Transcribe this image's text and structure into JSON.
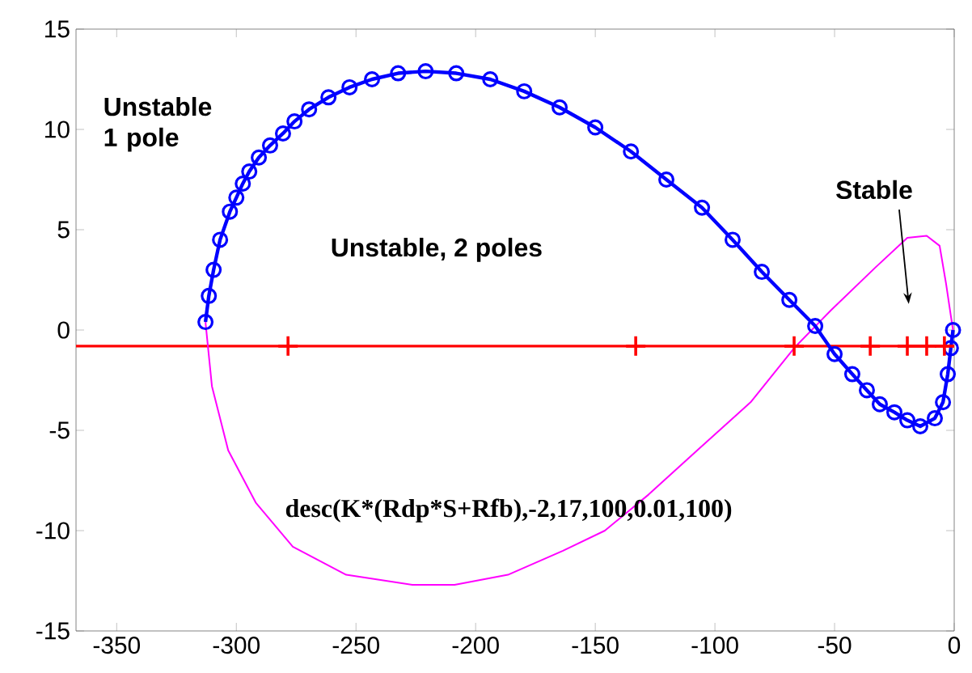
{
  "chart_data": {
    "type": "line",
    "xlim": [
      -367,
      0
    ],
    "xticks": [
      -350,
      -300,
      -250,
      -200,
      -150,
      -100,
      -50,
      0
    ],
    "ylim": [
      -15,
      15
    ],
    "yticks": [
      -15,
      -10,
      -5,
      0,
      5,
      10,
      15
    ],
    "grid": false,
    "line_style": "solid",
    "series": [
      {
        "color": "#0000ff",
        "marker": "circle",
        "x": [
          -312.9,
          -311.5,
          -309.5,
          -306.8,
          -302.7,
          -300.0,
          -297.3,
          -294.6,
          -290.6,
          -285.9,
          -280.5,
          -275.7,
          -269.6,
          -261.5,
          -252.7,
          -243.3,
          -232.4,
          -220.9,
          -208.1,
          -193.9,
          -179.7,
          -164.9,
          -150.0,
          -135.1,
          -120.3,
          -105.4,
          -92.6,
          -80.4,
          -68.9,
          -58.1,
          -50.0,
          -42.6,
          -36.5,
          -31.1,
          -25.0,
          -19.6,
          -14.2,
          -8.1,
          -4.7,
          -2.7,
          -1.4,
          -0.5
        ],
        "values": [
          0.4,
          1.7,
          3.0,
          4.5,
          5.9,
          6.6,
          7.3,
          7.9,
          8.6,
          9.2,
          9.8,
          10.4,
          11.0,
          11.6,
          12.1,
          12.5,
          12.8,
          12.9,
          12.8,
          12.5,
          11.9,
          11.1,
          10.1,
          8.9,
          7.5,
          6.1,
          4.5,
          2.9,
          1.5,
          0.2,
          -1.2,
          -2.2,
          -3.0,
          -3.7,
          -4.1,
          -4.5,
          -4.8,
          -4.4,
          -3.6,
          -2.2,
          -0.9,
          0.0
        ]
      },
      {
        "color": "#ff00ff",
        "marker": "none",
        "x": [
          -312.9,
          -310.2,
          -303.4,
          -291.9,
          -276.4,
          -254.1,
          -226.4,
          -208.8,
          -186.5,
          -163.5,
          -146.0,
          -127.7,
          -107.4,
          -85.1,
          -66.9,
          -51.4,
          -33.1,
          -19.6,
          -11.5,
          -6.1,
          -3.4,
          -1.4,
          -0.5
        ],
        "values": [
          0.4,
          -2.8,
          -6.0,
          -8.6,
          -10.8,
          -12.2,
          -12.7,
          -12.7,
          -12.2,
          -11.0,
          -10.0,
          -8.2,
          -6.0,
          -3.6,
          -0.9,
          1.0,
          3.1,
          4.6,
          4.7,
          4.2,
          2.3,
          0.7,
          0.0
        ]
      },
      {
        "type": "scatter",
        "color": "#ff0000",
        "marker": "cross",
        "x": [
          -278.4,
          -133.1,
          -66.9,
          -35.1,
          -19.6,
          -11.5,
          -4.1
        ],
        "values": [
          -0.8,
          -0.8,
          -0.8,
          -0.8,
          -0.8,
          -0.8,
          -0.8
        ]
      }
    ],
    "ref_lines": [
      {
        "axis": "y",
        "value": -0.8,
        "color": "#ff0000"
      }
    ],
    "annotations": [
      "Unstable 1 pole",
      "Unstable, 2 poles",
      "Stable",
      "desc(K*(Rdp*S+Rfb),-2,17,100,0.01,100)"
    ]
  }
}
